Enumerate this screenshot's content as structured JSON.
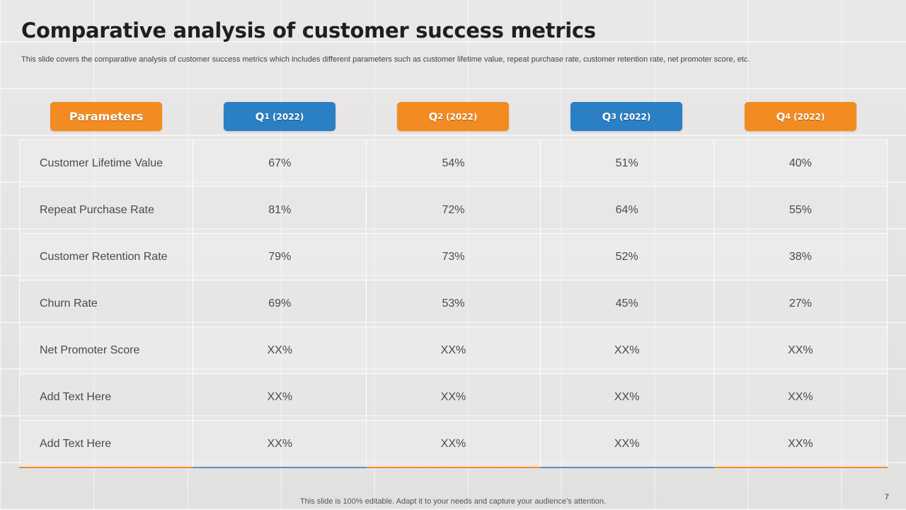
{
  "slide": {
    "title": "Comparative analysis of customer success metrics",
    "subtitle": "This slide covers the comparative analysis of customer success metrics which includes different parameters such as customer lifetime value, repeat purchase rate, customer retention rate, net promoter score, etc.",
    "footer": "This slide is 100% editable. Adapt it to your needs and capture your audience’s attention.",
    "page_number": "7"
  },
  "headers": {
    "parameters": "Parameters",
    "quarters": [
      {
        "q": "Q",
        "n": "1",
        "year": "(2022)",
        "color": "#2a7fc5"
      },
      {
        "q": "Q",
        "n": "2",
        "year": "(2022)",
        "color": "#f28c22"
      },
      {
        "q": "Q",
        "n": "3",
        "year": "(2022)",
        "color": "#2a7fc5"
      },
      {
        "q": "Q",
        "n": "4",
        "year": "(2022)",
        "color": "#f28c22"
      }
    ]
  },
  "rows": [
    {
      "label": "Customer Lifetime Value",
      "values": [
        "67%",
        "54%",
        "51%",
        "40%"
      ]
    },
    {
      "label": "Repeat Purchase Rate",
      "values": [
        "81%",
        "72%",
        "64%",
        "55%"
      ]
    },
    {
      "label": "Customer Retention Rate",
      "values": [
        "79%",
        "73%",
        "52%",
        "38%"
      ]
    },
    {
      "label": "Churn Rate",
      "values": [
        "69%",
        "53%",
        "45%",
        "27%"
      ]
    },
    {
      "label": "Net Promoter Score",
      "values": [
        "XX%",
        "XX%",
        "XX%",
        "XX%"
      ]
    },
    {
      "label": "Add Text Here",
      "values": [
        "XX%",
        "XX%",
        "XX%",
        "XX%"
      ]
    },
    {
      "label": "Add Text Here",
      "values": [
        "XX%",
        "XX%",
        "XX%",
        "XX%"
      ]
    }
  ],
  "colors": {
    "accent_orange": "#f28c22",
    "accent_blue": "#2a7fc5"
  }
}
